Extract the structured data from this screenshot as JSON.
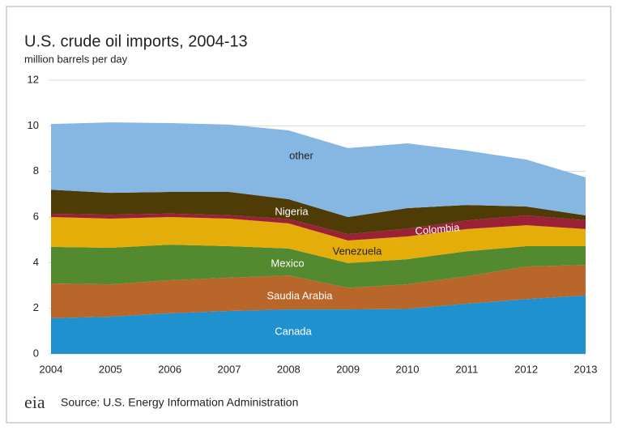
{
  "chart_data": {
    "type": "stacked_area",
    "title": "U.S. crude oil imports, 2004-13",
    "subtitle": "million barrels per day",
    "source": "Source: U.S. Energy Information Administration",
    "logo": "eia",
    "x": [
      2004,
      2005,
      2006,
      2007,
      2008,
      2009,
      2010,
      2011,
      2012,
      2013
    ],
    "xlim": [
      2004,
      2013
    ],
    "xticks": [
      2004,
      2005,
      2006,
      2007,
      2008,
      2009,
      2010,
      2011,
      2012,
      2013
    ],
    "ylim": [
      0,
      12
    ],
    "yticks": [
      0,
      2,
      4,
      6,
      8,
      10,
      12
    ],
    "grid": true,
    "series": [
      {
        "name": "Canada",
        "color": "#1f91cf",
        "values": [
          1.56,
          1.63,
          1.78,
          1.88,
          1.95,
          1.95,
          1.97,
          2.2,
          2.4,
          2.56
        ]
      },
      {
        "name": "Saudia Arabia",
        "color": "#b8662a",
        "values": [
          1.53,
          1.42,
          1.45,
          1.46,
          1.49,
          0.95,
          1.08,
          1.2,
          1.43,
          1.34
        ]
      },
      {
        "name": "Mexico",
        "color": "#548a2f",
        "values": [
          1.6,
          1.6,
          1.56,
          1.38,
          1.18,
          1.08,
          1.1,
          1.1,
          0.89,
          0.82
        ]
      },
      {
        "name": "Venezuela",
        "color": "#e5ad0a",
        "values": [
          1.31,
          1.28,
          1.21,
          1.21,
          1.1,
          0.99,
          1.0,
          0.97,
          0.92,
          0.75
        ]
      },
      {
        "name": "Colombia",
        "color": "#9b2236",
        "values": [
          0.14,
          0.17,
          0.15,
          0.15,
          0.19,
          0.28,
          0.34,
          0.38,
          0.43,
          0.39
        ]
      },
      {
        "name": "Nigeria",
        "color": "#4e3b06",
        "values": [
          1.06,
          0.96,
          0.95,
          1.02,
          0.87,
          0.75,
          0.9,
          0.68,
          0.39,
          0.21
        ]
      },
      {
        "name": "other",
        "color": "#86b6e2",
        "values": [
          2.88,
          3.09,
          3.02,
          2.95,
          3.02,
          3.02,
          2.84,
          2.38,
          2.06,
          1.67
        ]
      }
    ]
  }
}
